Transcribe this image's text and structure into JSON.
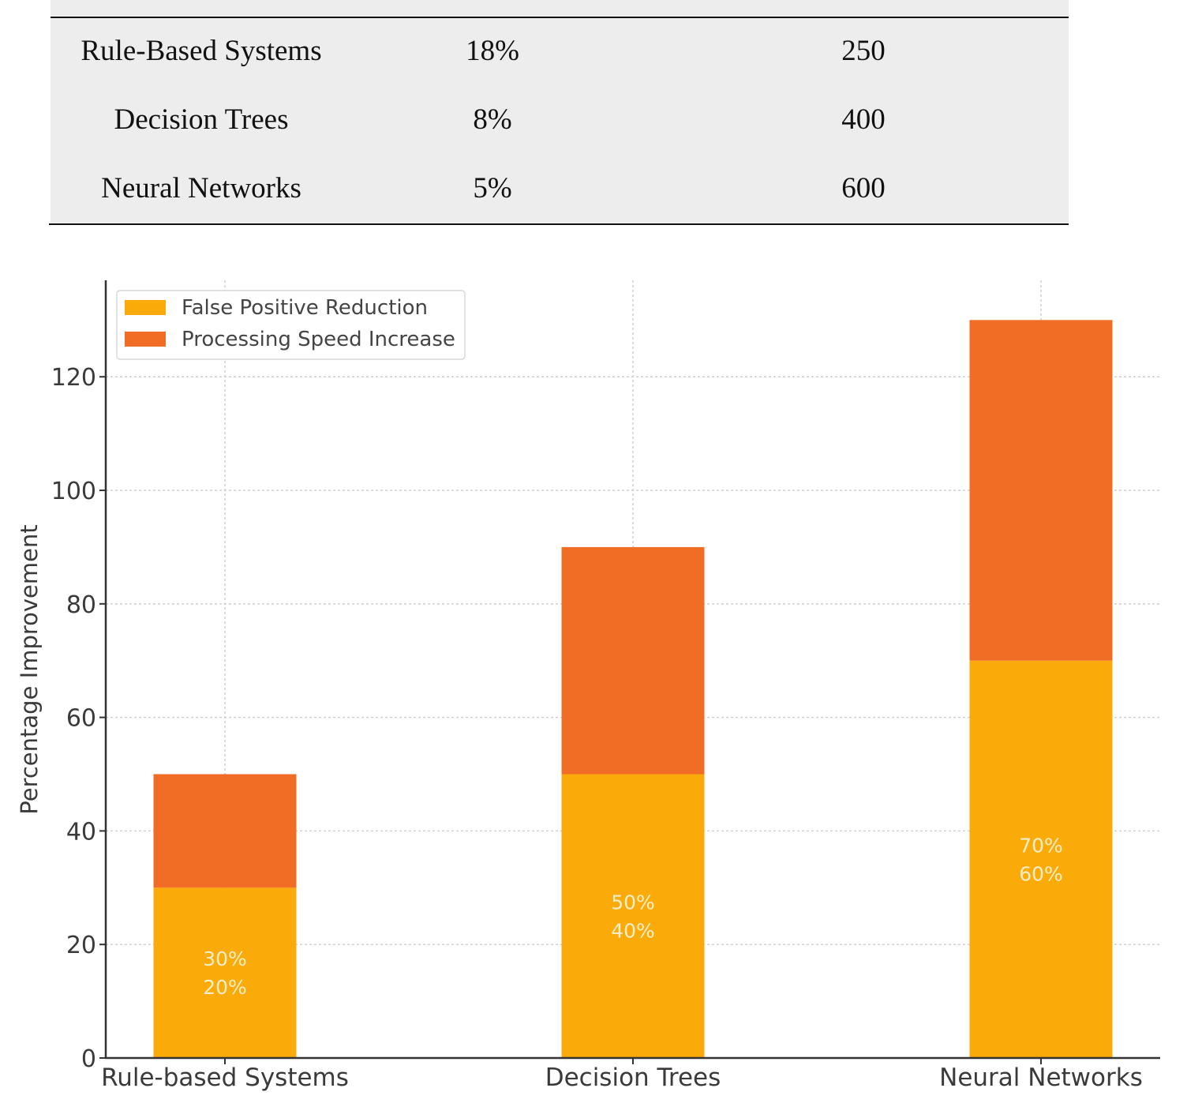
{
  "table": {
    "rows": [
      {
        "method": "Rule-Based Systems",
        "col2": "18%",
        "col3": "250"
      },
      {
        "method": "Decision Trees",
        "col2": "8%",
        "col3": "400"
      },
      {
        "method": "Neural Networks",
        "col2": "5%",
        "col3": "600"
      }
    ]
  },
  "chart_data": {
    "type": "bar",
    "stacked": true,
    "categories": [
      "Rule-based Systems",
      "Decision Trees",
      "Neural Networks"
    ],
    "series": [
      {
        "name": "False Positive Reduction",
        "values": [
          30,
          50,
          70
        ],
        "color": "#fbab09"
      },
      {
        "name": "Processing Speed Increase",
        "values": [
          20,
          40,
          60
        ],
        "color": "#f16c24"
      }
    ],
    "bar_labels": [
      [
        "30%",
        "20%"
      ],
      [
        "50%",
        "40%"
      ],
      [
        "70%",
        "60%"
      ]
    ],
    "ylabel": "Percentage Improvement",
    "ylim": [
      0,
      137
    ],
    "yticks": [
      0,
      20,
      40,
      60,
      80,
      100,
      120
    ],
    "grid": true,
    "legend_position": "top-left"
  }
}
